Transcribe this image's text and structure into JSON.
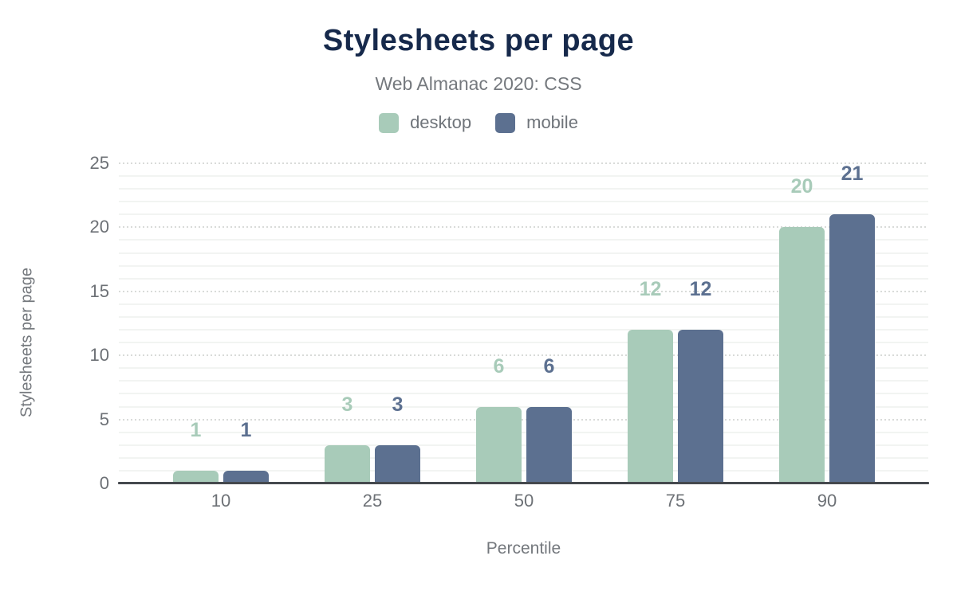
{
  "title": "Stylesheets per page",
  "subtitle": "Web Almanac 2020: CSS",
  "xlabel": "Percentile",
  "ylabel": "Stylesheets per page",
  "palette": {
    "desktop": "#a8cbb9",
    "mobile": "#5c7090",
    "title_text": "#16294b",
    "subtitle_text": "#75797e",
    "tick_text": "#6d7176",
    "axis_line": "#45494e"
  },
  "legend": {
    "items": [
      {
        "label": "desktop",
        "color": "#a8cbb9"
      },
      {
        "label": "mobile",
        "color": "#5c7090"
      }
    ]
  },
  "chart_data": {
    "type": "bar",
    "title": "Stylesheets per page",
    "subtitle": "Web Almanac 2020: CSS",
    "xlabel": "Percentile",
    "ylabel": "Stylesheets per page",
    "categories": [
      "10",
      "25",
      "50",
      "75",
      "90"
    ],
    "series": [
      {
        "name": "desktop",
        "color": "#a8cbb9",
        "values": [
          1,
          3,
          6,
          12,
          20
        ]
      },
      {
        "name": "mobile",
        "color": "#5c7090",
        "values": [
          1,
          3,
          6,
          12,
          21
        ]
      }
    ],
    "ylim": [
      0,
      25
    ],
    "yticks": [
      0,
      5,
      10,
      15,
      20,
      25
    ],
    "grid": "minor solid lines every 1 unit, dotted major lines every 5 units",
    "legend_position": "top",
    "value_labels": "above bars, colored per series"
  }
}
